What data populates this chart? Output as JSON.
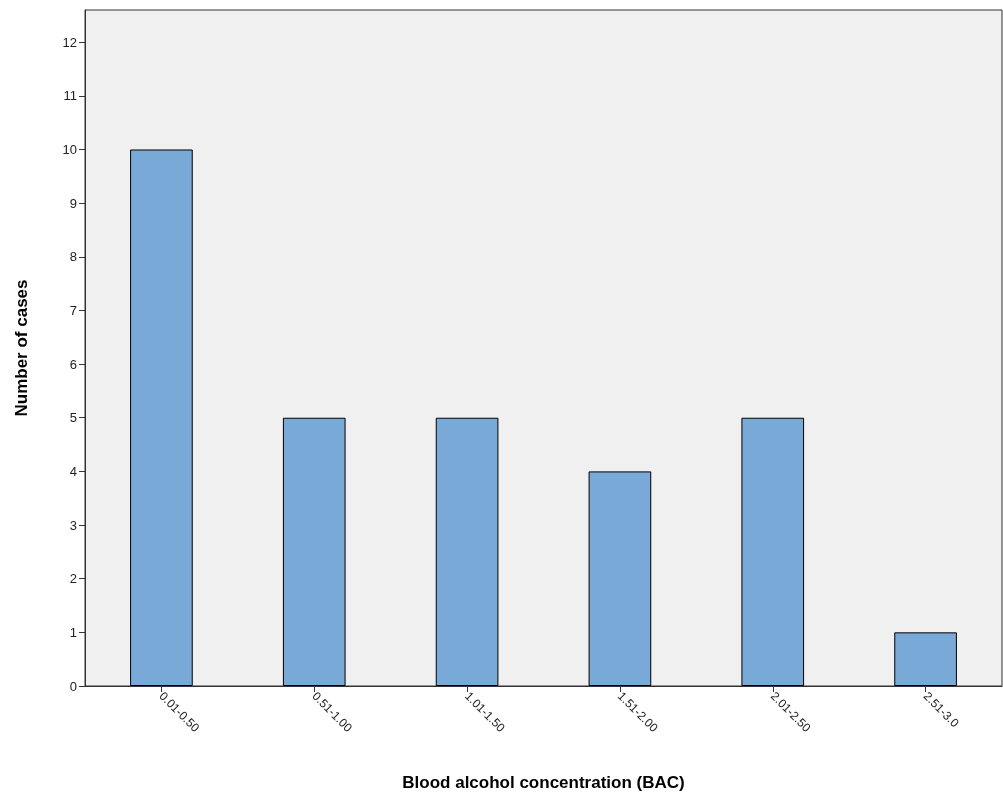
{
  "chart_data": {
    "type": "bar",
    "xlabel": "Blood alcohol concentration (BAC)",
    "ylabel": "Number of cases",
    "categories": [
      "0.01-0.50",
      "0.51-1.00",
      "1.01-1.50",
      "1.51-2.00",
      "2.01-2.50",
      "2.51-3.0"
    ],
    "values": [
      10,
      5,
      5,
      4,
      5,
      1
    ],
    "color": "#79a9d6",
    "ylim": [
      0,
      12.6
    ],
    "yticks": [
      0,
      1,
      2,
      3,
      4,
      5,
      6,
      7,
      8,
      9,
      10,
      11,
      12
    ],
    "grid": false
  }
}
